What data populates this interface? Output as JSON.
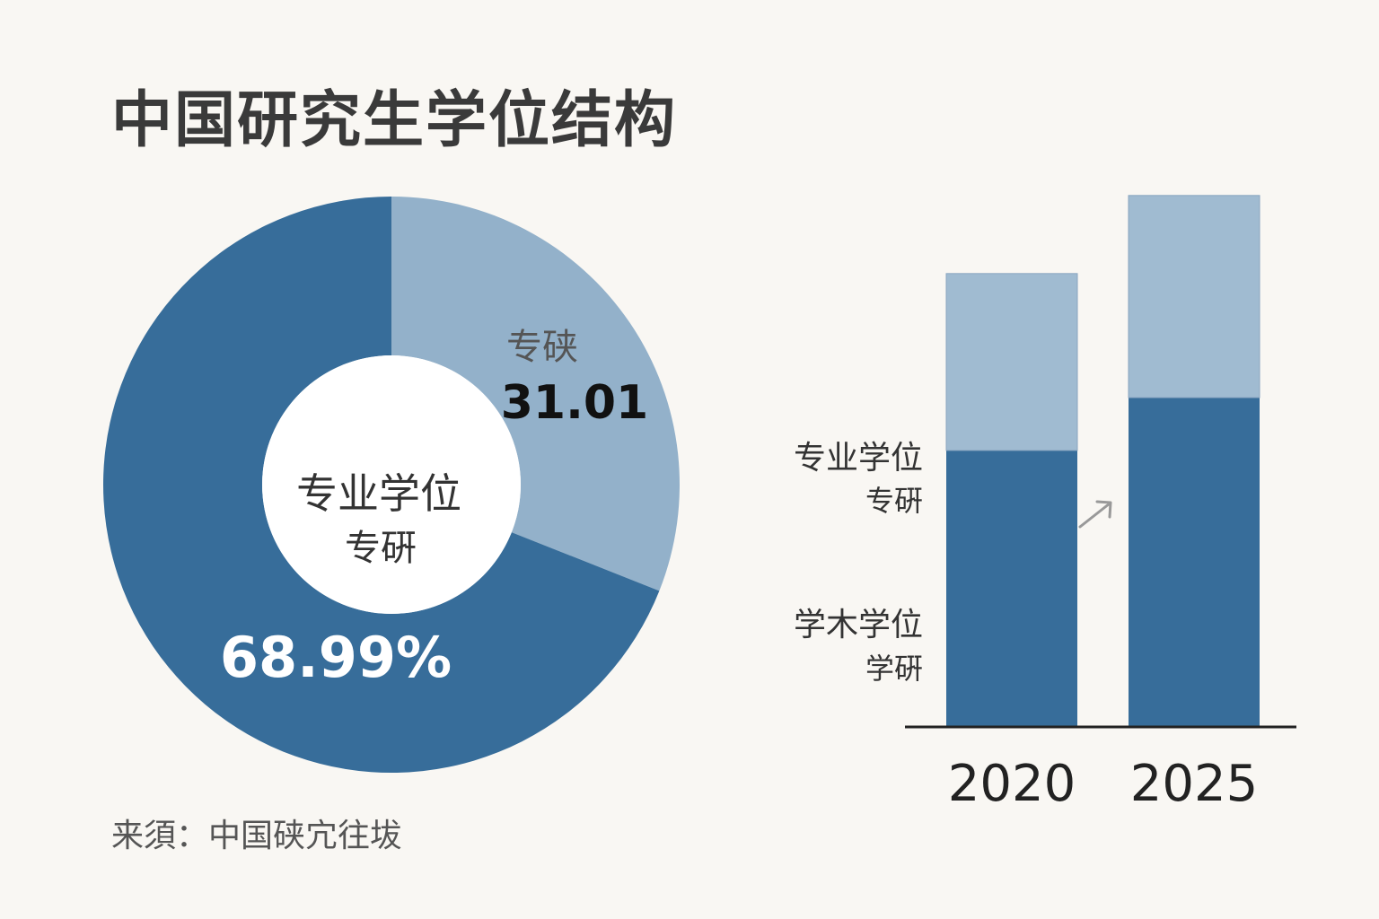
{
  "title": "中国研究生学位结构",
  "source": "来須：中国硖宂往坺",
  "colors": {
    "background": "#f9f7f3",
    "dark": "#376d9a",
    "light": "#93b1ca",
    "light_bar": "#a0bbd1",
    "axis": "#222222",
    "text": "#333333",
    "arrow": "#999999"
  },
  "chart_data": [
    {
      "type": "pie",
      "donut": true,
      "center_label_line1": "专业学位",
      "center_label_line2": "专硏",
      "slices": [
        {
          "label": "专硖",
          "value": 31.01,
          "value_label": "31.01",
          "color": "#93b1ca"
        },
        {
          "label": "",
          "value": 68.99,
          "value_label": "68.99%",
          "color": "#376d9a"
        }
      ]
    },
    {
      "type": "bar",
      "stacked": true,
      "categories": [
        "2020",
        "2025"
      ],
      "series": [
        {
          "name_line1": "学木学位",
          "name_line2": "学硏",
          "values": [
            60,
            71.5
          ],
          "color": "#376d9a"
        },
        {
          "name_line1": "专业学位",
          "name_line2": "专硏",
          "values": [
            38.5,
            44
          ],
          "color": "#a0bbd1"
        }
      ],
      "ylim": [
        0,
        118
      ],
      "legend": "left"
    }
  ]
}
